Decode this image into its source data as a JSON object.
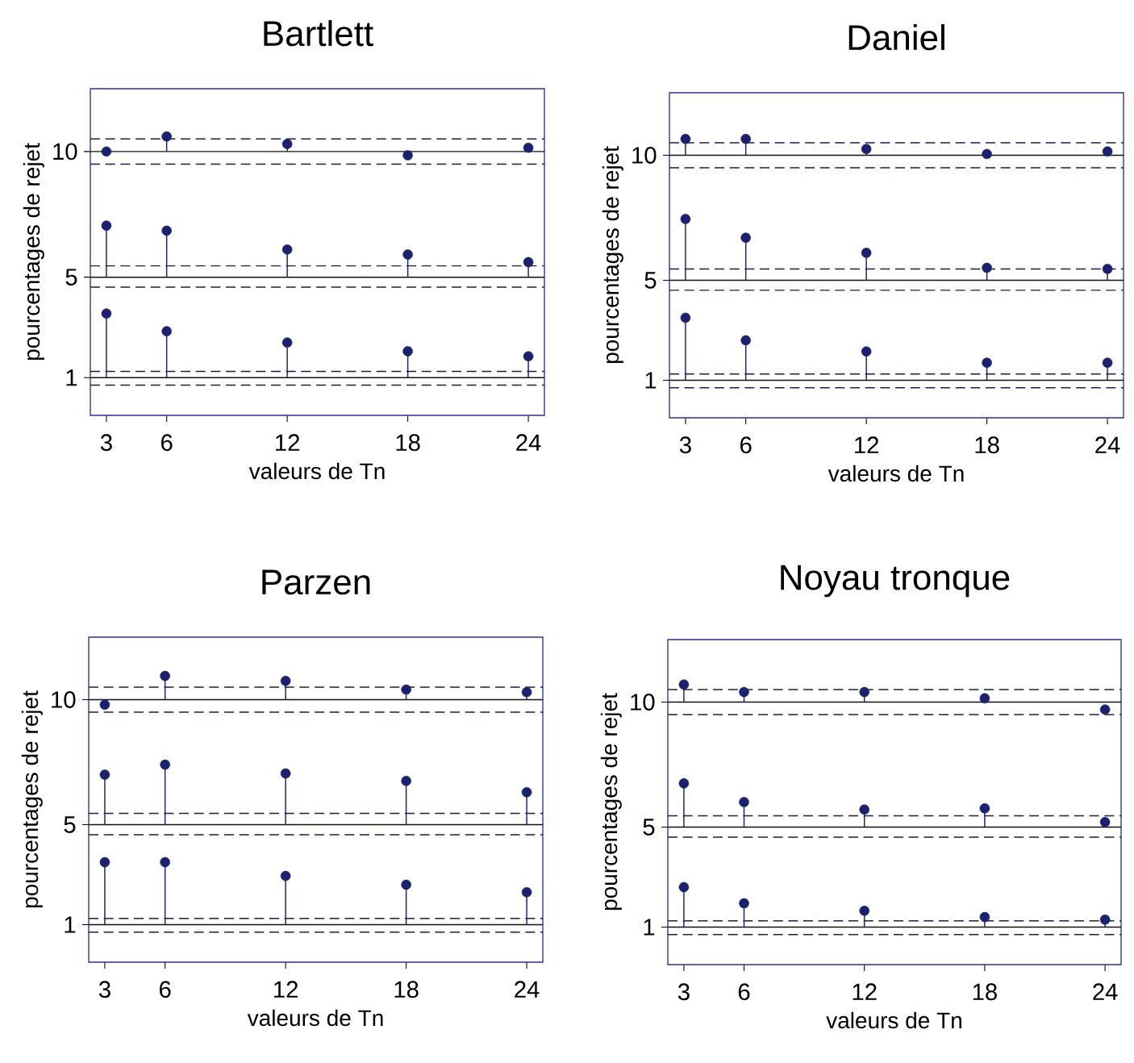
{
  "chart_data": [
    {
      "type": "lollipop",
      "title": "Bartlett",
      "xlabel": "valeurs de Tn",
      "ylabel": "pourcentages de rejet",
      "x": [
        3,
        6,
        12,
        18,
        24
      ],
      "xlim": [
        2.2,
        24.8
      ],
      "ylim": [
        -0.5,
        12.5
      ],
      "xticks": [
        3,
        6,
        12,
        18,
        24
      ],
      "yticks": [
        1,
        5,
        10
      ],
      "marker": "circle",
      "grid": false,
      "series": [
        {
          "color": "#1a2270",
          "values": [
            10.0,
            10.6,
            10.3,
            9.85,
            10.15
          ],
          "errors": [
            null,
            [
              10,
              10.6
            ],
            [
              10,
              10.3
            ],
            null,
            [
              10,
              10.15
            ]
          ]
        },
        {
          "color": "#1a2270",
          "values": [
            7.05,
            6.85,
            6.1,
            5.9,
            5.6
          ],
          "errors": [
            [
              5,
              7.05
            ],
            [
              5,
              6.85
            ],
            [
              5,
              6.1
            ],
            [
              5,
              5.9
            ],
            [
              5,
              5.6
            ]
          ]
        },
        {
          "color": "#1a2270",
          "values": [
            3.55,
            2.85,
            2.4,
            2.05,
            1.85
          ],
          "errors": [
            [
              1,
              3.55
            ],
            [
              1,
              2.85
            ],
            [
              1,
              2.4
            ],
            [
              1,
              2.05
            ],
            [
              1,
              1.85
            ]
          ]
        }
      ],
      "ref_lines": [
        {
          "axis": "y",
          "value": 10,
          "line_style": "solid",
          "color": "#111111"
        },
        {
          "axis": "y",
          "value": 10.5,
          "line_style": "dashed",
          "color": "#1a1f4a"
        },
        {
          "axis": "y",
          "value": 9.5,
          "line_style": "dashed",
          "color": "#1a1f4a"
        },
        {
          "axis": "y",
          "value": 5,
          "line_style": "solid",
          "color": "#111111"
        },
        {
          "axis": "y",
          "value": 5.45,
          "line_style": "dashed",
          "color": "#1a1f4a"
        },
        {
          "axis": "y",
          "value": 4.6,
          "line_style": "dashed",
          "color": "#1a1f4a"
        },
        {
          "axis": "y",
          "value": 1,
          "line_style": "solid",
          "color": "#111111"
        },
        {
          "axis": "y",
          "value": 1.25,
          "line_style": "dashed",
          "color": "#1a1f4a"
        },
        {
          "axis": "y",
          "value": 0.7,
          "line_style": "dashed",
          "color": "#1a1f4a"
        }
      ]
    },
    {
      "type": "lollipop",
      "title": "Daniel",
      "xlabel": "valeurs de Tn",
      "ylabel": "pourcentages de rejet",
      "x": [
        3,
        6,
        12,
        18,
        24
      ],
      "xlim": [
        2.2,
        24.8
      ],
      "ylim": [
        -0.5,
        12.5
      ],
      "xticks": [
        3,
        6,
        12,
        18,
        24
      ],
      "yticks": [
        1,
        5,
        10
      ],
      "marker": "circle",
      "grid": false,
      "series": [
        {
          "color": "#1a2270",
          "values": [
            10.65,
            10.65,
            10.25,
            10.05,
            10.15
          ],
          "errors": [
            [
              10,
              10.65
            ],
            [
              10,
              10.65
            ],
            [
              10,
              10.25
            ],
            null,
            [
              10,
              10.15
            ]
          ]
        },
        {
          "color": "#1a2270",
          "values": [
            7.45,
            6.7,
            6.1,
            5.5,
            5.45
          ],
          "errors": [
            [
              5,
              7.45
            ],
            [
              5,
              6.7
            ],
            [
              5,
              6.1
            ],
            [
              5,
              5.5
            ],
            [
              5,
              5.45
            ]
          ]
        },
        {
          "color": "#1a2270",
          "values": [
            3.5,
            2.6,
            2.15,
            1.7,
            1.7
          ],
          "errors": [
            [
              1,
              3.5
            ],
            [
              1,
              2.6
            ],
            [
              1,
              2.15
            ],
            [
              1,
              1.7
            ],
            [
              1,
              1.7
            ]
          ]
        }
      ],
      "ref_lines": [
        {
          "axis": "y",
          "value": 10,
          "line_style": "solid",
          "color": "#111111"
        },
        {
          "axis": "y",
          "value": 10.5,
          "line_style": "dashed",
          "color": "#1a1f4a"
        },
        {
          "axis": "y",
          "value": 9.5,
          "line_style": "dashed",
          "color": "#1a1f4a"
        },
        {
          "axis": "y",
          "value": 5,
          "line_style": "solid",
          "color": "#111111"
        },
        {
          "axis": "y",
          "value": 5.45,
          "line_style": "dashed",
          "color": "#1a1f4a"
        },
        {
          "axis": "y",
          "value": 4.6,
          "line_style": "dashed",
          "color": "#1a1f4a"
        },
        {
          "axis": "y",
          "value": 1,
          "line_style": "solid",
          "color": "#111111"
        },
        {
          "axis": "y",
          "value": 1.25,
          "line_style": "dashed",
          "color": "#1a1f4a"
        },
        {
          "axis": "y",
          "value": 0.7,
          "line_style": "dashed",
          "color": "#1a1f4a"
        }
      ]
    },
    {
      "type": "lollipop",
      "title": "Parzen",
      "xlabel": "valeurs de Tn",
      "ylabel": "pourcentages de rejet",
      "x": [
        3,
        6,
        12,
        18,
        24
      ],
      "xlim": [
        2.2,
        24.8
      ],
      "ylim": [
        -0.5,
        12.5
      ],
      "xticks": [
        3,
        6,
        12,
        18,
        24
      ],
      "yticks": [
        1,
        5,
        10
      ],
      "marker": "circle",
      "grid": false,
      "series": [
        {
          "color": "#1a2270",
          "values": [
            9.8,
            10.95,
            10.75,
            10.4,
            10.3
          ],
          "errors": [
            null,
            [
              10,
              10.95
            ],
            [
              10,
              10.75
            ],
            [
              10,
              10.4
            ],
            [
              10,
              10.3
            ]
          ]
        },
        {
          "color": "#1a2270",
          "values": [
            7.0,
            7.4,
            7.05,
            6.75,
            6.3
          ],
          "errors": [
            [
              5,
              7.0
            ],
            [
              5,
              7.4
            ],
            [
              5,
              7.05
            ],
            [
              5,
              6.75
            ],
            [
              5,
              6.3
            ]
          ]
        },
        {
          "color": "#1a2270",
          "values": [
            3.5,
            3.5,
            2.95,
            2.6,
            2.3
          ],
          "errors": [
            [
              1,
              3.5
            ],
            [
              1,
              3.5
            ],
            [
              1,
              2.95
            ],
            [
              1,
              2.6
            ],
            [
              1,
              2.3
            ]
          ]
        }
      ],
      "ref_lines": [
        {
          "axis": "y",
          "value": 10,
          "line_style": "solid",
          "color": "#111111"
        },
        {
          "axis": "y",
          "value": 10.5,
          "line_style": "dashed",
          "color": "#1a1f4a"
        },
        {
          "axis": "y",
          "value": 9.5,
          "line_style": "dashed",
          "color": "#1a1f4a"
        },
        {
          "axis": "y",
          "value": 5,
          "line_style": "solid",
          "color": "#111111"
        },
        {
          "axis": "y",
          "value": 5.45,
          "line_style": "dashed",
          "color": "#1a1f4a"
        },
        {
          "axis": "y",
          "value": 4.6,
          "line_style": "dashed",
          "color": "#1a1f4a"
        },
        {
          "axis": "y",
          "value": 1,
          "line_style": "solid",
          "color": "#111111"
        },
        {
          "axis": "y",
          "value": 1.25,
          "line_style": "dashed",
          "color": "#1a1f4a"
        },
        {
          "axis": "y",
          "value": 0.7,
          "line_style": "dashed",
          "color": "#1a1f4a"
        }
      ]
    },
    {
      "type": "lollipop",
      "title": "Noyau tronque",
      "xlabel": "valeurs de Tn",
      "ylabel": "pourcentages de rejet",
      "x": [
        3,
        6,
        12,
        18,
        24
      ],
      "xlim": [
        2.2,
        24.8
      ],
      "ylim": [
        -0.5,
        12.5
      ],
      "xticks": [
        3,
        6,
        12,
        18,
        24
      ],
      "yticks": [
        1,
        5,
        10
      ],
      "marker": "circle",
      "grid": false,
      "series": [
        {
          "color": "#1a2270",
          "values": [
            10.7,
            10.4,
            10.4,
            10.15,
            9.7
          ],
          "errors": [
            [
              10,
              10.7
            ],
            [
              10,
              10.4
            ],
            [
              10,
              10.4
            ],
            [
              10,
              10.15
            ],
            null
          ]
        },
        {
          "color": "#1a2270",
          "values": [
            6.75,
            6.0,
            5.7,
            5.75,
            5.2
          ],
          "errors": [
            [
              5,
              6.75
            ],
            [
              5,
              6.0
            ],
            [
              5,
              5.7
            ],
            [
              5,
              5.75
            ],
            [
              5,
              5.2
            ]
          ]
        },
        {
          "color": "#1a2270",
          "values": [
            2.6,
            1.95,
            1.65,
            1.4,
            1.3
          ],
          "errors": [
            [
              1,
              2.6
            ],
            [
              1,
              1.95
            ],
            [
              1,
              1.65
            ],
            [
              1,
              1.4
            ],
            [
              1,
              1.3
            ]
          ]
        }
      ],
      "ref_lines": [
        {
          "axis": "y",
          "value": 10,
          "line_style": "solid",
          "color": "#111111"
        },
        {
          "axis": "y",
          "value": 10.5,
          "line_style": "dashed",
          "color": "#1a1f4a"
        },
        {
          "axis": "y",
          "value": 9.5,
          "line_style": "dashed",
          "color": "#1a1f4a"
        },
        {
          "axis": "y",
          "value": 5,
          "line_style": "solid",
          "color": "#111111"
        },
        {
          "axis": "y",
          "value": 5.45,
          "line_style": "dashed",
          "color": "#1a1f4a"
        },
        {
          "axis": "y",
          "value": 4.6,
          "line_style": "dashed",
          "color": "#1a1f4a"
        },
        {
          "axis": "y",
          "value": 1,
          "line_style": "solid",
          "color": "#111111"
        },
        {
          "axis": "y",
          "value": 1.25,
          "line_style": "dashed",
          "color": "#1a1f4a"
        },
        {
          "axis": "y",
          "value": 0.7,
          "line_style": "dashed",
          "color": "#1a1f4a"
        }
      ]
    }
  ]
}
